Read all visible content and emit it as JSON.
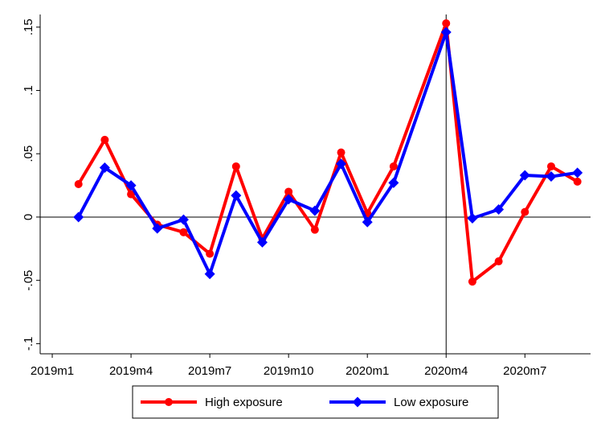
{
  "chart_data": {
    "type": "line",
    "x": [
      1,
      2,
      3,
      4,
      5,
      6,
      7,
      8,
      9,
      10,
      11,
      12,
      13,
      15,
      16,
      17,
      18,
      19,
      20
    ],
    "series": [
      {
        "name": "High exposure",
        "color": "#ff0000",
        "marker": "circle",
        "values": [
          0.026,
          0.061,
          0.018,
          -0.006,
          -0.012,
          -0.029,
          0.04,
          -0.017,
          0.02,
          -0.01,
          0.051,
          0.003,
          0.04,
          0.153,
          -0.051,
          -0.035,
          0.004,
          0.04,
          0.028
        ]
      },
      {
        "name": "Low exposure",
        "color": "#0000ff",
        "marker": "diamond",
        "values": [
          0.0,
          0.039,
          0.025,
          -0.009,
          -0.002,
          -0.045,
          0.017,
          -0.02,
          0.014,
          0.005,
          0.042,
          -0.004,
          0.027,
          0.146,
          -0.001,
          0.006,
          0.033,
          0.032,
          0.035
        ]
      }
    ],
    "xlim": [
      -0.46,
      20.5
    ],
    "xticks": [
      {
        "value": 0,
        "label": "2019m1"
      },
      {
        "value": 3,
        "label": "2019m4"
      },
      {
        "value": 6,
        "label": "2019m7"
      },
      {
        "value": 9,
        "label": "2019m10"
      },
      {
        "value": 12,
        "label": "2020m1"
      },
      {
        "value": 15,
        "label": "2020m4"
      },
      {
        "value": 18,
        "label": "2020m7"
      }
    ],
    "ylim": [
      -0.108,
      0.16
    ],
    "yticks": [
      {
        "value": -0.1,
        "label": "-.1"
      },
      {
        "value": -0.05,
        "label": "-.05"
      },
      0,
      {
        "value": 0.05,
        "label": ".05"
      },
      {
        "value": 0.1,
        "label": ".1"
      },
      {
        "value": 0.15,
        "label": ".15"
      }
    ],
    "xline": 15,
    "yline": 0,
    "grid": false
  }
}
